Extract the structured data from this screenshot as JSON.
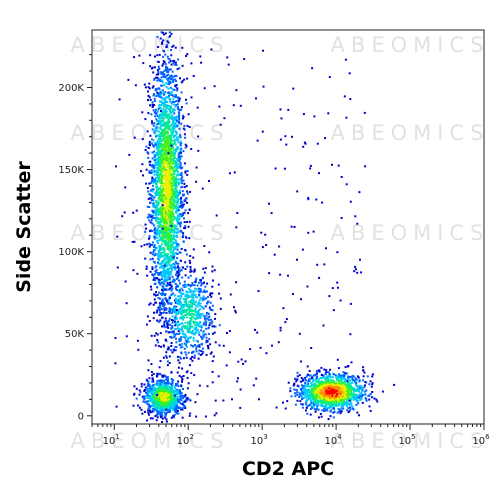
{
  "chart_data": {
    "type": "density-scatter",
    "xlabel": "CD2 APC",
    "ylabel": "Side Scatter",
    "x_scale": "log",
    "xlim": [
      5,
      1000000
    ],
    "ylim": [
      -5000,
      235000
    ],
    "x_ticks": [
      {
        "value": 10,
        "base": "10",
        "exp": "1"
      },
      {
        "value": 100,
        "base": "10",
        "exp": "2"
      },
      {
        "value": 1000,
        "base": "10",
        "exp": "3"
      },
      {
        "value": 10000,
        "base": "10",
        "exp": "4"
      },
      {
        "value": 100000,
        "base": "10",
        "exp": "5"
      },
      {
        "value": 1000000,
        "base": "10",
        "exp": "6"
      }
    ],
    "y_ticks": [
      {
        "value": 0,
        "label": "0"
      },
      {
        "value": 50000,
        "label": "50K"
      },
      {
        "value": 100000,
        "label": "100K"
      },
      {
        "value": 150000,
        "label": "150K"
      },
      {
        "value": 200000,
        "label": "200K"
      }
    ],
    "watermark": "ABEOMICS",
    "colormap": [
      "#0000c8",
      "#0060ff",
      "#00c8ff",
      "#00e8a0",
      "#40f020",
      "#e8f000",
      "#ff9000",
      "#ff0000"
    ],
    "populations": [
      {
        "name": "",
        "x_center": 50,
        "y_center": 140000,
        "x_spread_decades": 0.11,
        "y_spread": 38000,
        "points": 2600,
        "peak_level": 5
      },
      {
        "name": "",
        "x_center": 100,
        "y_center": 62000,
        "x_spread_decades": 0.17,
        "y_spread": 14000,
        "points": 650,
        "peak_level": 3
      },
      {
        "name": "",
        "x_center": 45,
        "y_center": 12000,
        "x_spread_decades": 0.13,
        "y_spread": 5500,
        "points": 900,
        "peak_level": 5
      },
      {
        "name": "",
        "x_center": 8500,
        "y_center": 15000,
        "x_spread_decades": 0.22,
        "y_spread": 5500,
        "points": 1300,
        "peak_level": 7
      }
    ]
  }
}
